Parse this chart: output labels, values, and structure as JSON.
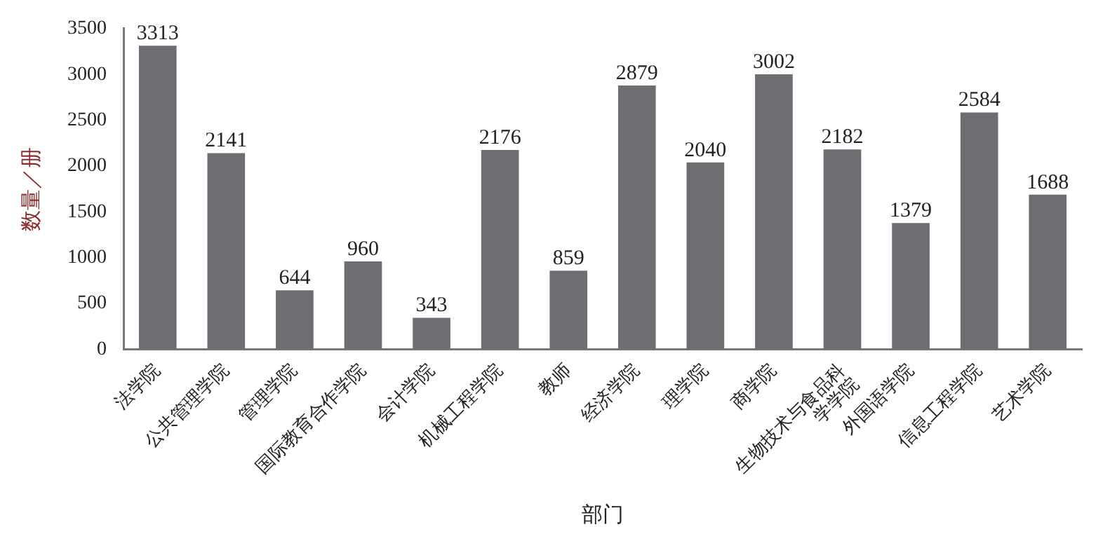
{
  "chart_data": {
    "type": "bar",
    "xlabel": "部门",
    "ylabel": "数量／册",
    "categories": [
      "法学院",
      "公共管理学院",
      "管理学院",
      "国际教育合作学院",
      "会计学院",
      "机械工程学院",
      "教师",
      "经济学院",
      "理学院",
      "商学院",
      "生物技术与食品科学学院",
      "外国语学院",
      "信息工程学院",
      "艺术学院"
    ],
    "values": [
      3313,
      2141,
      644,
      960,
      343,
      2176,
      859,
      2879,
      2040,
      3002,
      2182,
      1379,
      2584,
      1688
    ],
    "color": "#6d6e71",
    "ylim": [
      0,
      3500
    ],
    "yticks": [
      0,
      500,
      1000,
      1500,
      2000,
      2500,
      3000,
      3500
    ],
    "grid": false,
    "legend": false,
    "data_labels": true
  }
}
